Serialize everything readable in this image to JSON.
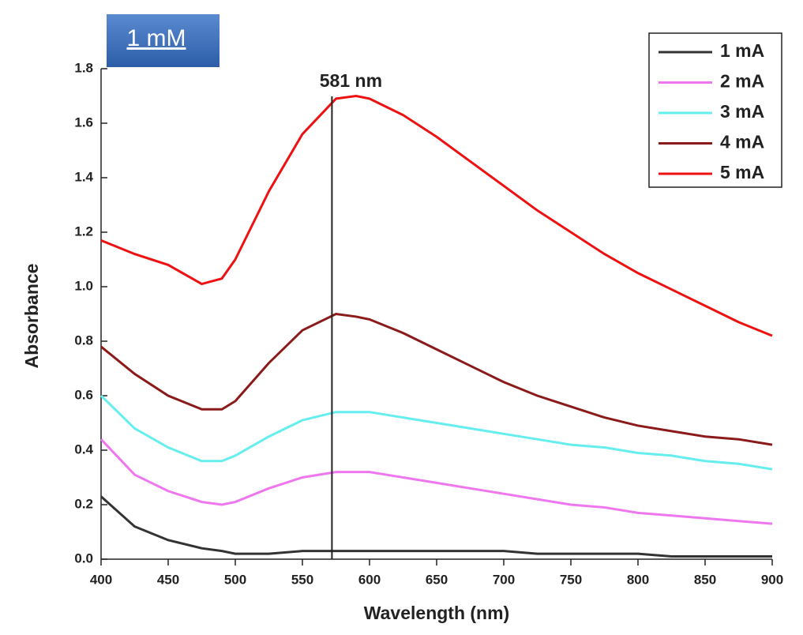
{
  "chart_data": {
    "type": "line",
    "xlabel": "Wavelength (nm)",
    "ylabel": "Absorbance",
    "badge": "1 mM",
    "annotation": "581 nm",
    "marker_line_x": 572,
    "x": [
      400,
      425,
      450,
      475,
      490,
      500,
      525,
      550,
      575,
      590,
      600,
      625,
      650,
      675,
      700,
      725,
      750,
      775,
      800,
      825,
      850,
      875,
      900
    ],
    "series": [
      {
        "name": "1 mA",
        "color": "#333333",
        "values": [
          0.23,
          0.12,
          0.07,
          0.04,
          0.03,
          0.02,
          0.02,
          0.03,
          0.03,
          0.03,
          0.03,
          0.03,
          0.03,
          0.03,
          0.03,
          0.02,
          0.02,
          0.02,
          0.02,
          0.01,
          0.01,
          0.01,
          0.01
        ]
      },
      {
        "name": "2 mA",
        "color": "#ee77ee",
        "values": [
          0.44,
          0.31,
          0.25,
          0.21,
          0.2,
          0.21,
          0.26,
          0.3,
          0.32,
          0.32,
          0.32,
          0.3,
          0.28,
          0.26,
          0.24,
          0.22,
          0.2,
          0.19,
          0.17,
          0.16,
          0.15,
          0.14,
          0.13
        ]
      },
      {
        "name": "3 mA",
        "color": "#66eeee",
        "values": [
          0.6,
          0.48,
          0.41,
          0.36,
          0.36,
          0.38,
          0.45,
          0.51,
          0.54,
          0.54,
          0.54,
          0.52,
          0.5,
          0.48,
          0.46,
          0.44,
          0.42,
          0.41,
          0.39,
          0.38,
          0.36,
          0.35,
          0.33
        ]
      },
      {
        "name": "4 mA",
        "color": "#8b1a1a",
        "values": [
          0.78,
          0.68,
          0.6,
          0.55,
          0.55,
          0.58,
          0.72,
          0.84,
          0.9,
          0.89,
          0.88,
          0.83,
          0.77,
          0.71,
          0.65,
          0.6,
          0.56,
          0.52,
          0.49,
          0.47,
          0.45,
          0.44,
          0.42
        ]
      },
      {
        "name": "5 mA",
        "color": "#ee1111",
        "values": [
          1.17,
          1.12,
          1.08,
          1.01,
          1.03,
          1.1,
          1.35,
          1.56,
          1.69,
          1.7,
          1.69,
          1.63,
          1.55,
          1.46,
          1.37,
          1.28,
          1.2,
          1.12,
          1.05,
          0.99,
          0.93,
          0.87,
          0.82
        ]
      }
    ],
    "xlim": [
      400,
      900
    ],
    "xticks": [
      400,
      450,
      500,
      550,
      600,
      650,
      700,
      750,
      800,
      850,
      900
    ],
    "ylim": [
      0,
      1.8
    ],
    "yticks": [
      {
        "value": 0,
        "label": "0.0"
      },
      0.2,
      0.4,
      0.6,
      0.8,
      {
        "value": 1,
        "label": "1.0"
      },
      1.2,
      1.4,
      1.6,
      1.8
    ],
    "legend": "top-right"
  }
}
